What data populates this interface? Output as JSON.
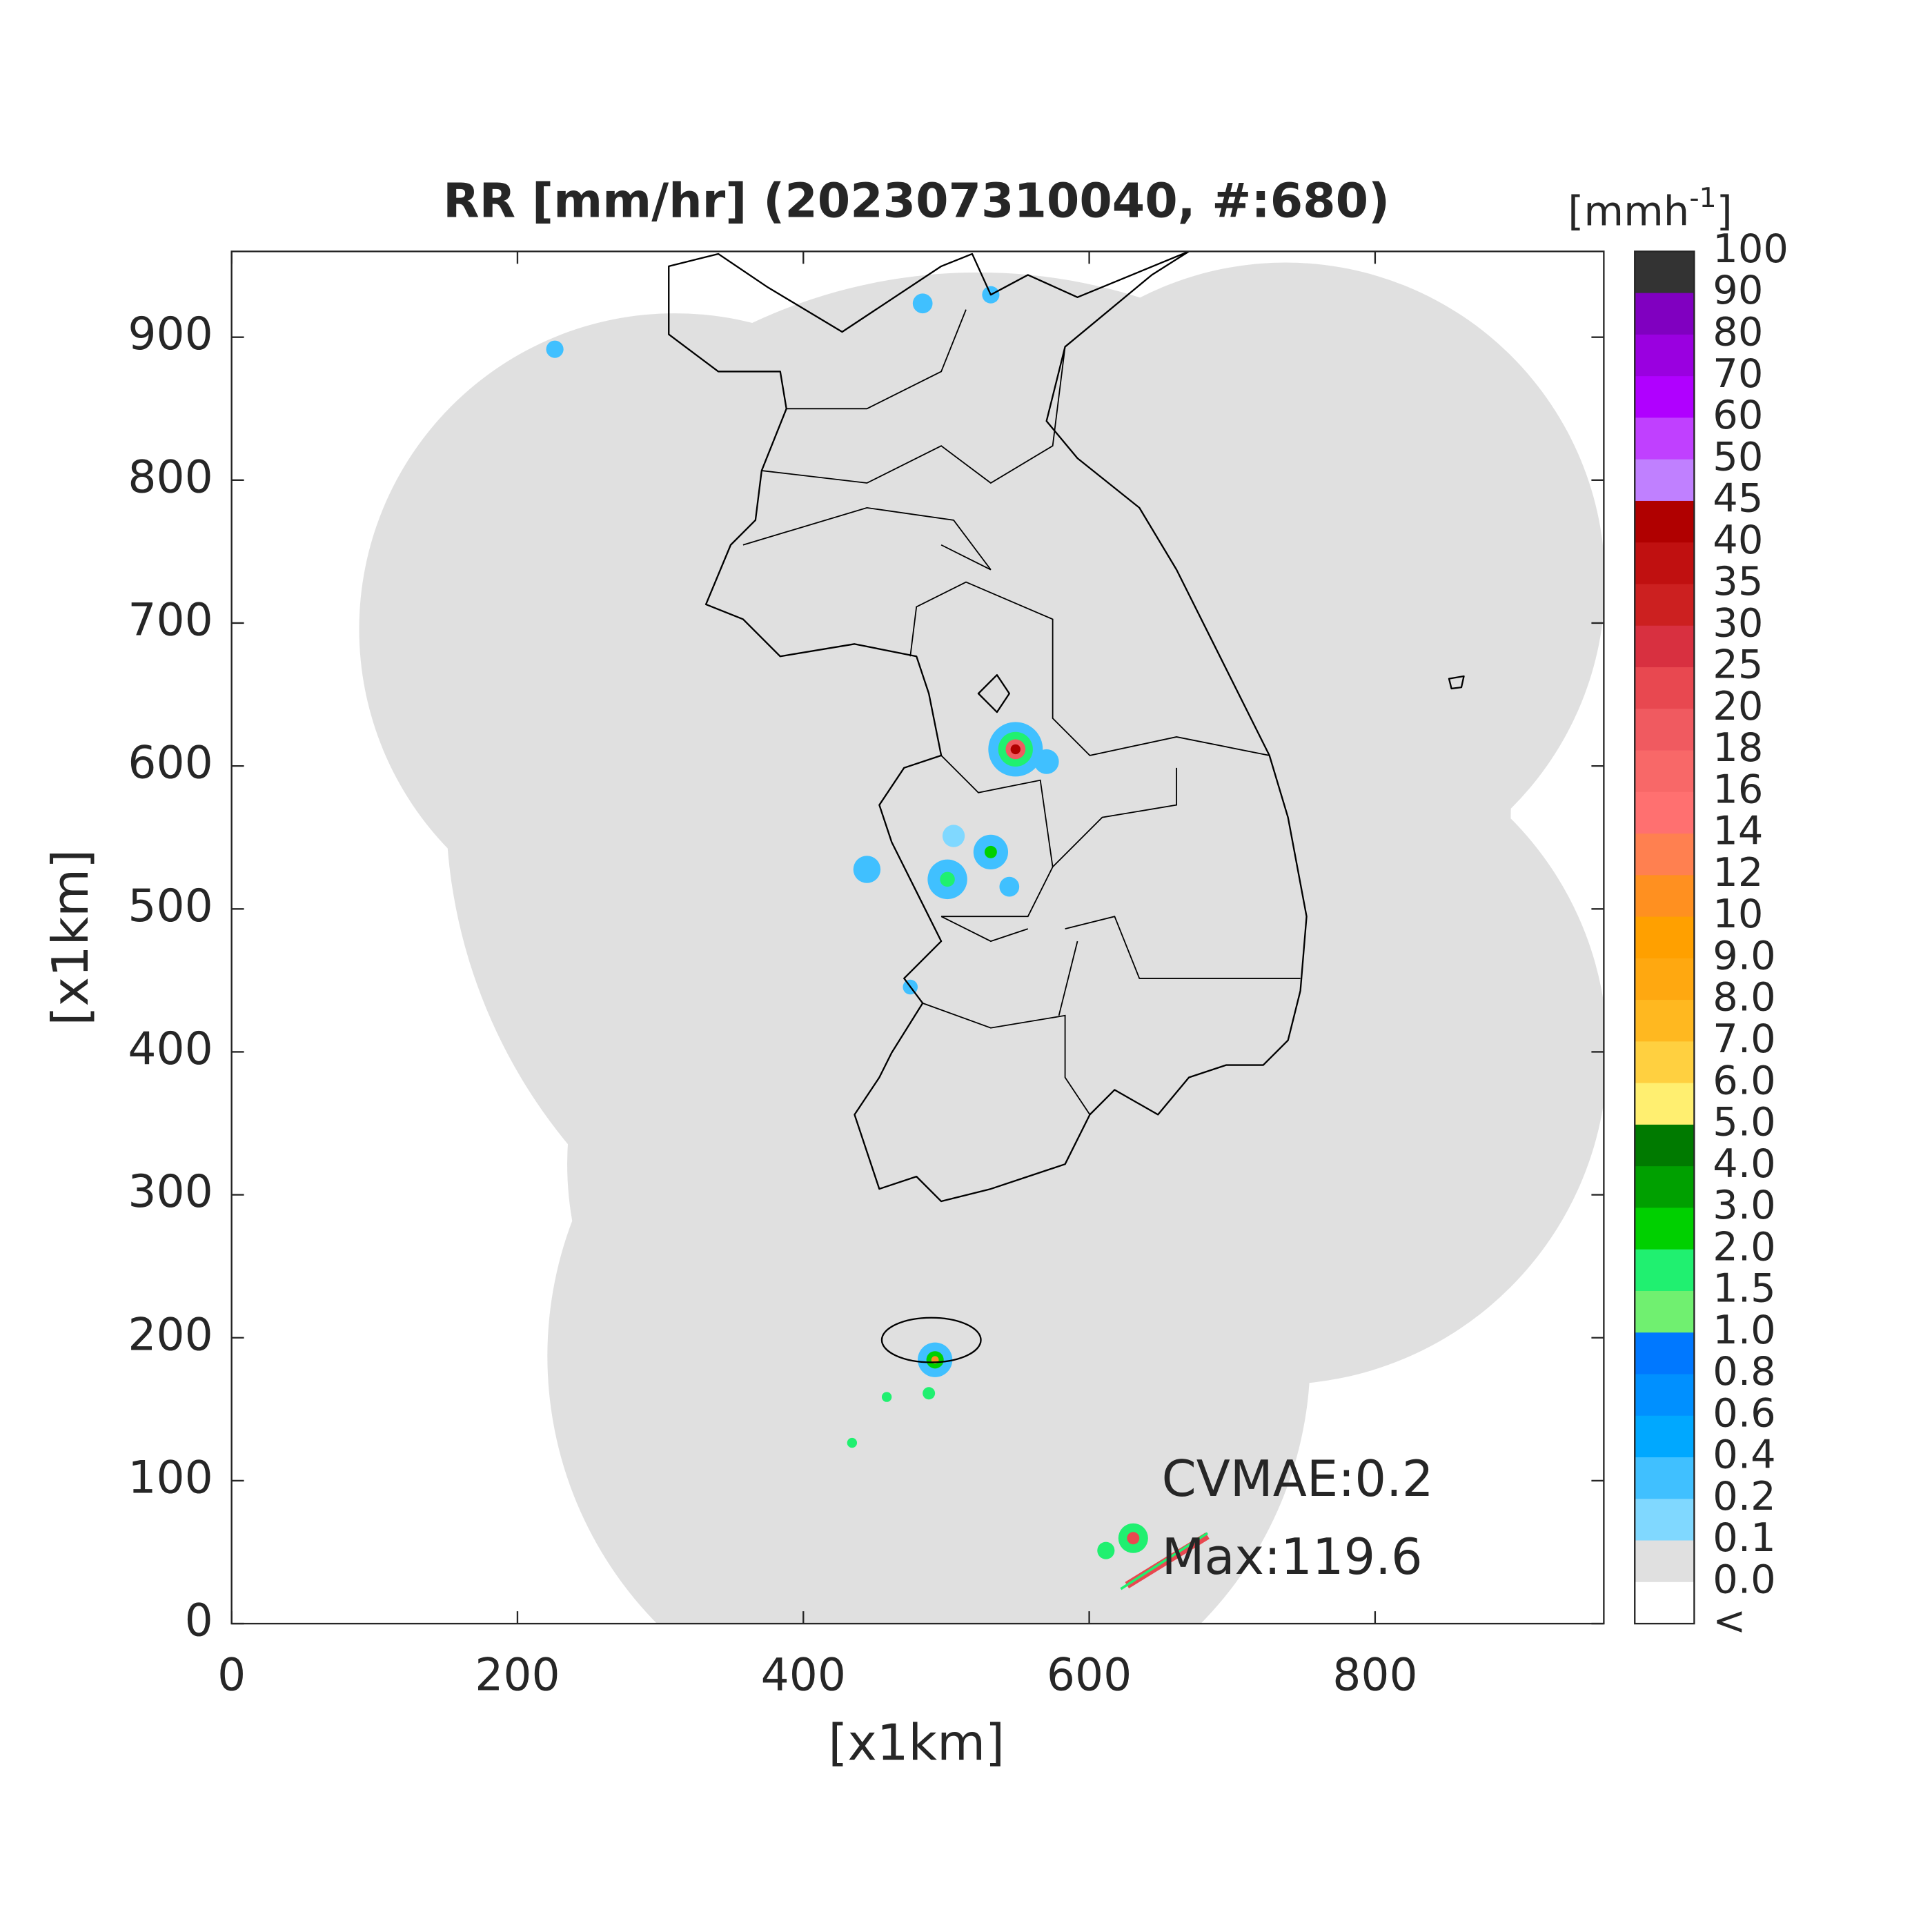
{
  "chart_data": {
    "type": "map",
    "title": "RR [mm/hr] (202307310040, #:680)",
    "xlabel": "[x1km]",
    "ylabel": "[x1km]",
    "xlim": [
      0,
      960
    ],
    "ylim": [
      0,
      960
    ],
    "xticks": [
      0,
      200,
      400,
      600,
      800
    ],
    "yticks": [
      0,
      100,
      200,
      300,
      400,
      500,
      600,
      700,
      800,
      900
    ],
    "annotations": [
      "CVMAE:0.2",
      "Max:119.6"
    ],
    "colorbar": {
      "unit": {
        "open": "[mmh",
        "exp": "-1",
        "close": "]"
      },
      "labels": [
        "100",
        "90",
        "80",
        "70",
        "60",
        "50",
        "45",
        "40",
        "35",
        "30",
        "25",
        "20",
        "18",
        "16",
        "14",
        "12",
        "10",
        "9.0",
        "8.0",
        "7.0",
        "6.0",
        "5.0",
        "4.0",
        "3.0",
        "2.0",
        "1.5",
        "1.0",
        "0.8",
        "0.6",
        "0.4",
        "0.2",
        "0.1",
        "0.0",
        "<"
      ],
      "colors": [
        "#333333",
        "#8000c0",
        "#9a00e0",
        "#b000ff",
        "#c040ff",
        "#c080ff",
        "#b00000",
        "#c01010",
        "#cc2020",
        "#d83040",
        "#e84850",
        "#f05a60",
        "#f86868",
        "#ff7070",
        "#ff8050",
        "#ff9020",
        "#ffa000",
        "#ffa810",
        "#ffb820",
        "#ffd040",
        "#ffef70",
        "#007a00",
        "#00a000",
        "#00d000",
        "#20f070",
        "#70f070",
        "#0078ff",
        "#0090ff",
        "#00a8ff",
        "#40c0ff",
        "#80d8ff",
        "#e0e0e0",
        "#ffffff"
      ]
    }
  }
}
